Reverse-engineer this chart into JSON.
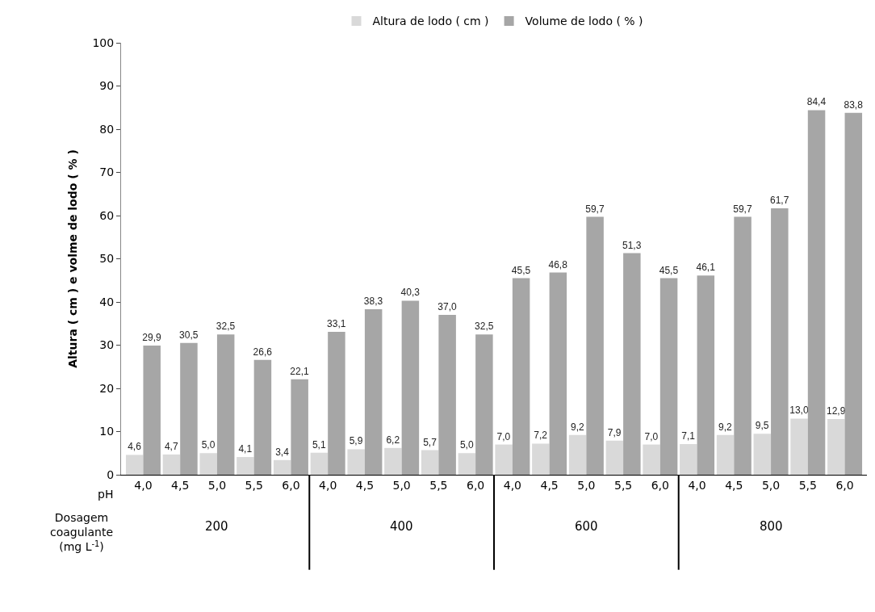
{
  "chart_data": {
    "type": "bar",
    "ylabel": "Altura ( cm ) e volme de lodo ( % )",
    "categories": [
      "4,0",
      "4,5",
      "5,0",
      "5,5",
      "6,0",
      "4,0",
      "4,5",
      "5,0",
      "5,5",
      "6,0",
      "4,0",
      "4,5",
      "5,0",
      "5,5",
      "6,0",
      "4,0",
      "4,5",
      "5,0",
      "5,5",
      "6,0"
    ],
    "series": [
      {
        "name": "Altura de lodo ( cm )",
        "color": "#d9d9d9",
        "values": [
          4.6,
          4.7,
          5.0,
          4.1,
          3.4,
          5.1,
          5.9,
          6.2,
          5.7,
          5.0,
          7.0,
          7.2,
          9.2,
          7.9,
          7.0,
          7.1,
          9.2,
          9.5,
          13.0,
          12.9
        ],
        "value_labels": [
          "4,6",
          "4,7",
          "5,0",
          "4,1",
          "3,4",
          "5,1",
          "5,9",
          "6,2",
          "5,7",
          "5,0",
          "7,0",
          "7,2",
          "9,2",
          "7,9",
          "7,0",
          "7,1",
          "9,2",
          "9,5",
          "13,0",
          "12,9"
        ]
      },
      {
        "name": "Volume de lodo ( % )",
        "color": "#a6a6a6",
        "values": [
          29.9,
          30.5,
          32.5,
          26.6,
          22.1,
          33.1,
          38.3,
          40.3,
          37.0,
          32.5,
          45.5,
          46.8,
          59.7,
          51.3,
          45.5,
          46.1,
          59.7,
          61.7,
          84.4,
          83.8
        ],
        "value_labels": [
          "29,9",
          "30,5",
          "32,5",
          "26,6",
          "22,1",
          "33,1",
          "38,3",
          "40,3",
          "37,0",
          "32,5",
          "45,5",
          "46,8",
          "59,7",
          "51,3",
          "45,5",
          "46,1",
          "59,7",
          "61,7",
          "84,4",
          "83,8"
        ]
      }
    ],
    "ylim": [
      0,
      100
    ],
    "yticks": [
      0,
      10,
      20,
      30,
      40,
      50,
      60,
      70,
      80,
      90,
      100
    ],
    "legend": "top",
    "annotations": [
      "pH",
      "Dosagem\ncoagulante\n(mg L$^{-1}$)",
      "200",
      "400",
      "600",
      "800"
    ]
  }
}
